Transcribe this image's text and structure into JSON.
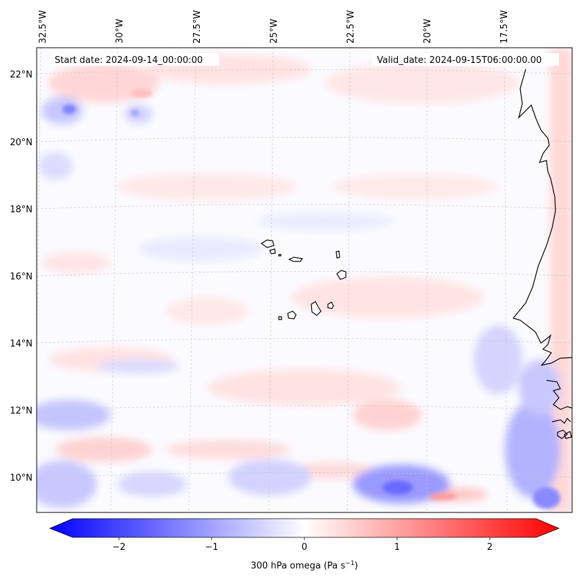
{
  "header": {
    "start_date": "Start date: 2024-09-14_00:00:00",
    "valid_date": "Valid_date: 2024-09-15T06:00:00.00"
  },
  "lon_labels": [
    "32.5°W",
    "30°W",
    "27.5°W",
    "25°W",
    "22.5°W",
    "20°W",
    "17.5°W"
  ],
  "lat_labels": [
    "22°N",
    "20°N",
    "18°N",
    "16°N",
    "14°N",
    "12°N",
    "10°N"
  ],
  "colorbar": {
    "ticks": [
      "−2",
      "−1",
      "0",
      "1",
      "2"
    ],
    "label": "300 hPa omega (Pa s",
    "label_exp": "−1",
    "label_close": ")",
    "colors": {
      "min": "#0000ff",
      "mid": "#ffffff",
      "max": "#ff0000"
    }
  }
}
